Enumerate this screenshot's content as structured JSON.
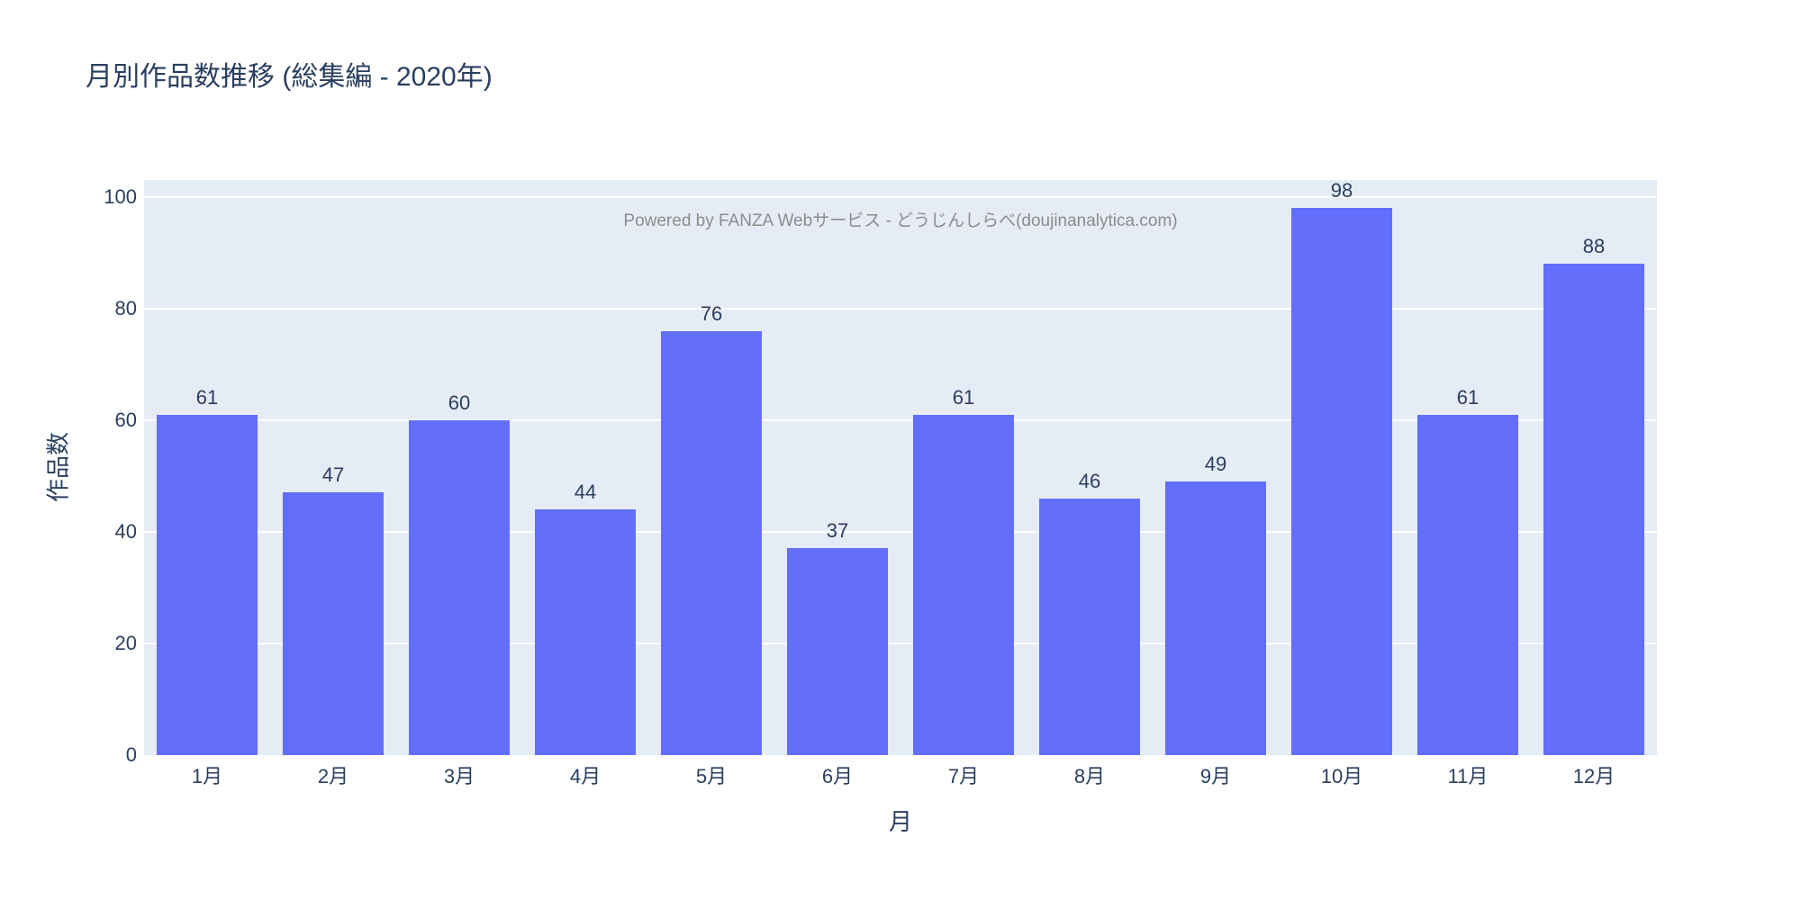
{
  "header": {
    "title": "月別作品数推移 (総集編 - 2020年)"
  },
  "watermark": "Powered by FANZA Webサービス - どうじんしらべ(doujinanalytica.com)",
  "chart_data": {
    "type": "bar",
    "title": "月別作品数推移 (総集編 - 2020年)",
    "categories": [
      "1月",
      "2月",
      "3月",
      "4月",
      "5月",
      "6月",
      "7月",
      "8月",
      "9月",
      "10月",
      "11月",
      "12月"
    ],
    "values": [
      61,
      47,
      60,
      44,
      76,
      37,
      61,
      46,
      49,
      98,
      61,
      88
    ],
    "xlabel": "月",
    "ylabel": "作品数",
    "yticks": [
      0,
      20,
      40,
      60,
      80,
      100
    ],
    "ylim": [
      0,
      103
    ],
    "grid": true,
    "legend_visible": false,
    "bar_width_fraction": 0.8
  },
  "colors": {
    "bar": "#636EFA",
    "plot_background": "#E5ECF6",
    "gridline": "#FFFFFF",
    "text": "#2A3F5F",
    "watermark": "#8C8C8C",
    "page_background": "#FFFFFF"
  }
}
